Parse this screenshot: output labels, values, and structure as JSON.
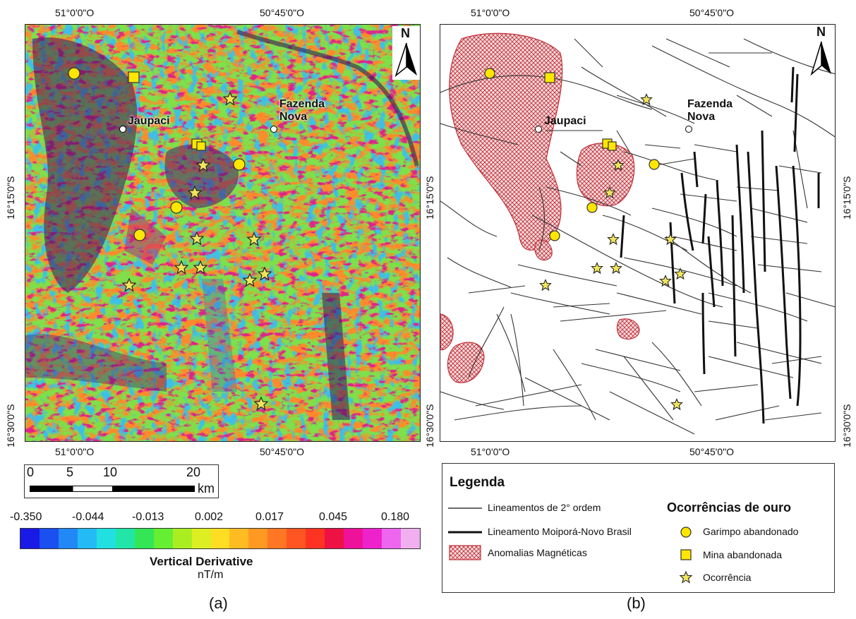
{
  "map_a": {
    "top_ticks": [
      "51°0'0\"O",
      "50°45'0\"O"
    ],
    "bottom_ticks": [
      "51°0'0\"O",
      "50°45'0\"O"
    ],
    "left_ticks": [
      "16°15'0\"S",
      "16°30'0\"S"
    ],
    "north": "N",
    "towns": [
      {
        "name": "Jaupaci"
      },
      {
        "name": "Fazenda\nNova"
      }
    ],
    "panel_label": "(a)"
  },
  "map_b": {
    "top_ticks": [
      "51°0'0\"O",
      "50°45'0\"O"
    ],
    "bottom_ticks": [
      "51°0'0\"O",
      "50°45'0\"O"
    ],
    "left_ticks": [
      "16°15'0\"S",
      "16°30'0\"S"
    ],
    "right_ticks": [
      "16°15'0\"S",
      "16°30'0\"S"
    ],
    "north": "N",
    "towns": [
      {
        "name": "Jaupaci"
      },
      {
        "name": "Fazenda\nNova"
      }
    ],
    "panel_label": "(b)"
  },
  "scale_bar": {
    "labels": [
      "0",
      "5",
      "10",
      "20"
    ],
    "unit": "km"
  },
  "colorbar": {
    "ticks": [
      "-0.350",
      "-0.044",
      "-0.013",
      "0.002",
      "0.017",
      "0.045",
      "0.180"
    ],
    "title": "Vertical Derivative",
    "unit": "nT/m",
    "colors": [
      "#1a1ae6",
      "#1a4ff0",
      "#2288f5",
      "#22bbf5",
      "#22e0e0",
      "#22e6a8",
      "#33e655",
      "#66ee33",
      "#aaee22",
      "#ddee22",
      "#ffdd22",
      "#ffbb22",
      "#ff9922",
      "#ff7722",
      "#ff5522",
      "#ff3322",
      "#ee1144",
      "#ee1199",
      "#ee22cc",
      "#ee66ee",
      "#f0b0f0"
    ]
  },
  "legend": {
    "title": "Legenda",
    "items": [
      {
        "label": "Lineamentos de 2° ordem"
      },
      {
        "label": "Lineamento Moiporá-Novo Brasil"
      },
      {
        "label": "Anomalias Magnéticas"
      }
    ],
    "gold_title": "Ocorrências de ouro",
    "gold_items": [
      {
        "label": "Garimpo abandonado"
      },
      {
        "label": "Mina abandonada"
      },
      {
        "label": "Ocorrência"
      }
    ],
    "colors": {
      "symbol_fill": "#ffe600",
      "anomaly": "#c0303a"
    }
  }
}
